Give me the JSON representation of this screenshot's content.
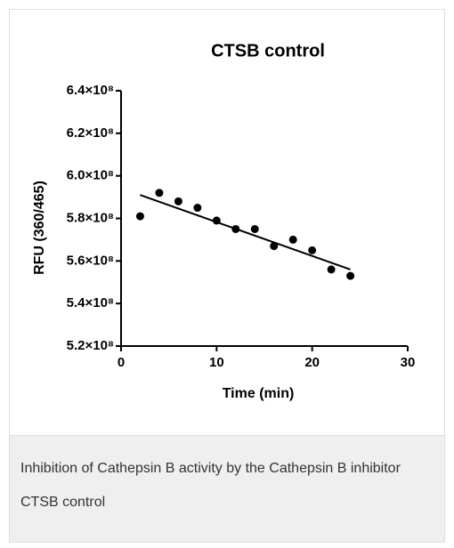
{
  "chart_data": {
    "type": "scatter",
    "title": "CTSB control",
    "x_label": "Time (min)",
    "y_label": "RFU (360/465)",
    "x": [
      2,
      4,
      6,
      8,
      10,
      12,
      14,
      16,
      18,
      20,
      22,
      24
    ],
    "values": [
      581000000,
      592000000,
      588000000,
      585000000,
      579000000,
      575000000,
      575000000,
      567000000,
      570000000,
      565000000,
      556000000,
      553000000
    ],
    "color": "#000000",
    "fit": {
      "x": [
        2,
        24
      ],
      "values": [
        591000000,
        556000000
      ]
    },
    "xlim": [
      0,
      30
    ],
    "xticks": [
      0,
      10,
      20,
      30
    ],
    "ylim": [
      520000000,
      640000000
    ],
    "yticks": [
      {
        "value": 520000000,
        "label": "5.2×10⁸"
      },
      {
        "value": 540000000,
        "label": "5.4×10⁸"
      },
      {
        "value": 560000000,
        "label": "5.6×10⁸"
      },
      {
        "value": 580000000,
        "label": "5.8×10⁸"
      },
      {
        "value": 600000000,
        "label": "6.0×10⁸"
      },
      {
        "value": 620000000,
        "label": "6.2×10⁸"
      },
      {
        "value": 640000000,
        "label": "6.4×10⁸"
      }
    ]
  },
  "caption": "Inhibition of Cathepsin B activity by the Cathepsin B inhibitor CTSB control"
}
